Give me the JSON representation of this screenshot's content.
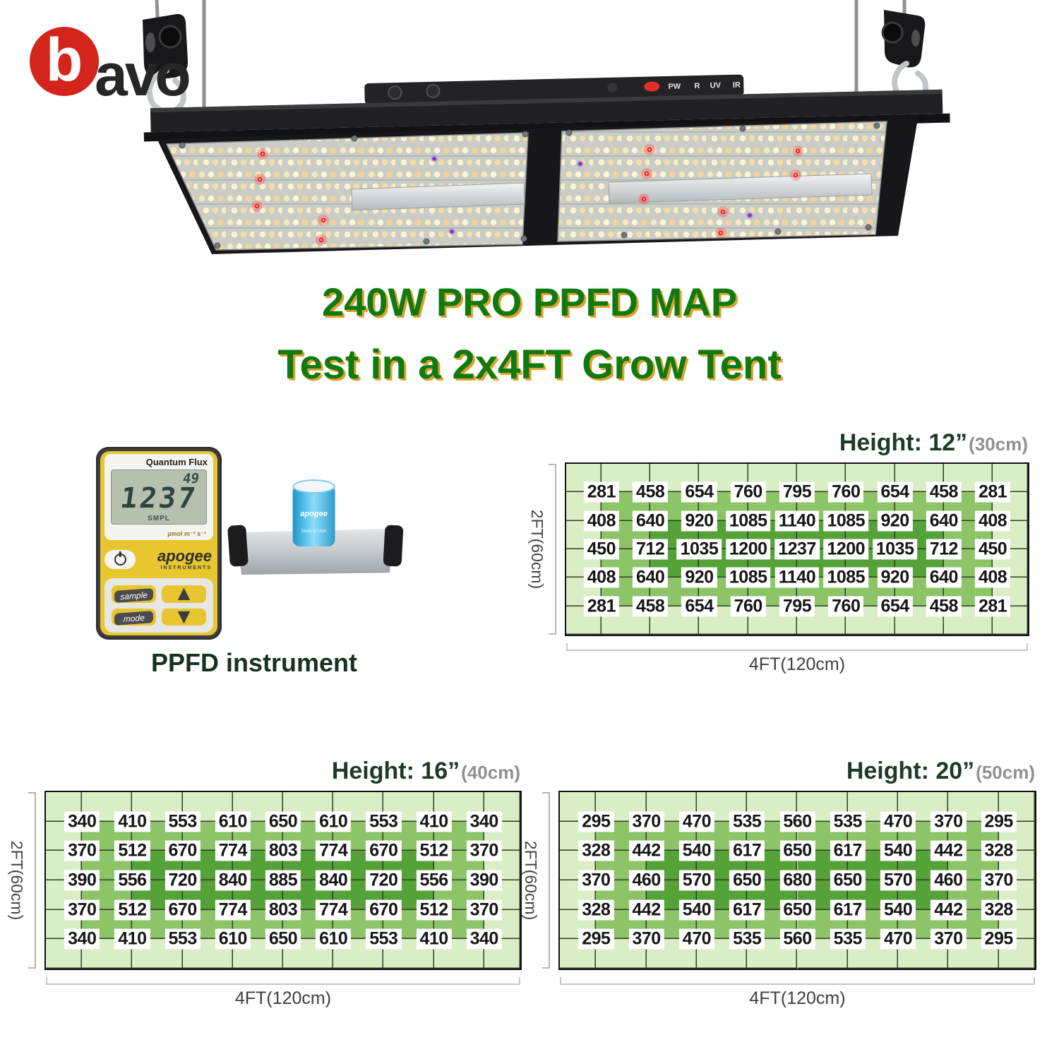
{
  "logo": {
    "b": "b",
    "rest": "avo",
    "circle_color": "#d4251c"
  },
  "title": {
    "line1": "240W PRO PPFD MAP",
    "line2": "Test in a 2x4FT Grow Tent",
    "text_color": "#107a10",
    "shadow_color": "#dfa12d"
  },
  "fixture": {
    "indicators": [
      "PW",
      "R",
      "UV",
      "IR"
    ]
  },
  "meter": {
    "model": "Quantum Flux",
    "reading_small": "49",
    "reading_main": "1237",
    "mode_label": "SMPL",
    "unit": "µmol m⁻² s⁻¹",
    "brand": "apogee",
    "brand_sub": "INSTRUMENTS",
    "button_sample": "sample",
    "button_mode": "mode"
  },
  "icons": {
    "up_arrow": "▲",
    "down_arrow": "▼"
  },
  "sensor": {
    "brand": "apogee",
    "origin": "Made in USA"
  },
  "caption": "PPFD instrument",
  "chart_data": [
    {
      "type": "heatmap",
      "title": "Height: 12”",
      "subtitle": "(30cm)",
      "xlabel": "4FT(120cm)",
      "ylabel": "2FT(60cm)",
      "rows": [
        [
          281,
          458,
          654,
          760,
          795,
          760,
          654,
          458,
          281
        ],
        [
          408,
          640,
          920,
          1085,
          1140,
          1085,
          920,
          640,
          408
        ],
        [
          450,
          712,
          1035,
          1200,
          1237,
          1200,
          1035,
          712,
          450
        ],
        [
          408,
          640,
          920,
          1085,
          1140,
          1085,
          920,
          640,
          408
        ],
        [
          281,
          458,
          654,
          760,
          795,
          760,
          654,
          458,
          281
        ]
      ],
      "zones": [
        "LLLLLLLLLL",
        "LMMMMMMMML",
        "LMDDDDDDML",
        "LMDDDDDDML",
        "LMMMMMMMML",
        "LLLLLLLLLL"
      ],
      "colors": {
        "L": "#daeec6",
        "M": "#8cc467",
        "D": "#55a238",
        "grid": "#2f3e27",
        "border": "#101010"
      }
    },
    {
      "type": "heatmap",
      "title": "Height: 16”",
      "subtitle": "(40cm)",
      "xlabel": "4FT(120cm)",
      "ylabel": "2FT(60cm)",
      "rows": [
        [
          340,
          410,
          553,
          610,
          650,
          610,
          553,
          410,
          340
        ],
        [
          370,
          512,
          670,
          774,
          803,
          774,
          670,
          512,
          370
        ],
        [
          390,
          556,
          720,
          840,
          885,
          840,
          720,
          556,
          390
        ],
        [
          370,
          512,
          670,
          774,
          803,
          774,
          670,
          512,
          370
        ],
        [
          340,
          410,
          553,
          610,
          650,
          610,
          553,
          410,
          340
        ]
      ],
      "zones": [
        "LLLLLLLLLL",
        "LMMMMMMMML",
        "LMDDDDDDML",
        "LMDDDDDDML",
        "LMMMMMMMML",
        "LLLLLLLLLL"
      ],
      "colors": {
        "L": "#daeec6",
        "M": "#8cc467",
        "D": "#55a238",
        "grid": "#2f3e27",
        "border": "#101010"
      }
    },
    {
      "type": "heatmap",
      "title": "Height: 20”",
      "subtitle": "(50cm)",
      "xlabel": "4FT(120cm)",
      "ylabel": "2FT(60cm)",
      "rows": [
        [
          295,
          370,
          470,
          535,
          560,
          535,
          470,
          370,
          295
        ],
        [
          328,
          442,
          540,
          617,
          650,
          617,
          540,
          442,
          328
        ],
        [
          370,
          460,
          570,
          650,
          680,
          650,
          570,
          460,
          370
        ],
        [
          328,
          442,
          540,
          617,
          650,
          617,
          540,
          442,
          328
        ],
        [
          295,
          370,
          470,
          535,
          560,
          535,
          470,
          370,
          295
        ]
      ],
      "zones": [
        "LLLLLLLLLL",
        "LMMMMMMMML",
        "LMDDDDDDML",
        "LMDDDDDDML",
        "LMMMMMMMML",
        "LLLLLLLLLL"
      ],
      "colors": {
        "L": "#daeec6",
        "M": "#8cc467",
        "D": "#55a238",
        "grid": "#2f3e27",
        "border": "#101010"
      }
    }
  ]
}
